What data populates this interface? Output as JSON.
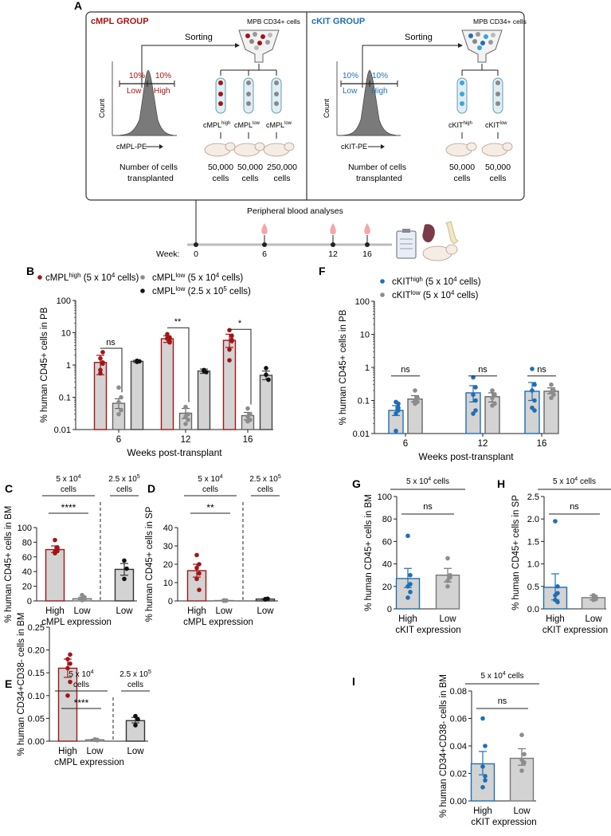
{
  "panel_A": {
    "letter": "A",
    "cmpl_group": {
      "title": "cMPL GROUP",
      "sorting": "Sorting",
      "source": "MPB CD34+ cells",
      "pct_low": "10%",
      "pct_high": "10%",
      "low": "Low",
      "high": "High",
      "xlabel": "cMPL-PE",
      "ylabel": "Count",
      "tubes": [
        {
          "base": "cMPL",
          "sup": "high",
          "cells": "50,000",
          "unit": "cells"
        },
        {
          "base": "cMPL",
          "sup": "low",
          "cells": "50,000",
          "unit": "cells"
        },
        {
          "base": "cMPL",
          "sup": "low",
          "cells": "250,000",
          "unit": "cells"
        }
      ],
      "cells_label_1": "Number of cells",
      "cells_label_2": "transplanted"
    },
    "ckit_group": {
      "title": "cKIT GROUP",
      "sorting": "Sorting",
      "source": "MPB CD34+ cells",
      "pct_low": "10%",
      "pct_high": "10%",
      "low": "Low",
      "high": "High",
      "xlabel": "cKIT-PE",
      "ylabel": "Count",
      "tubes": [
        {
          "base": "cKIT",
          "sup": "high",
          "cells": "50,000",
          "unit": "cells"
        },
        {
          "base": "cKIT",
          "sup": "low",
          "cells": "50,000",
          "unit": "cells"
        }
      ],
      "cells_label_1": "Number of cells",
      "cells_label_2": "transplanted"
    },
    "timeline": {
      "title": "Peripheral blood analyses",
      "week_label": "Week:",
      "weeks": [
        "0",
        "6",
        "12",
        "16"
      ]
    }
  },
  "colors": {
    "red": "#a31515",
    "blue": "#1f6fb5",
    "gray_bar": "#d3d3d3",
    "dot_gray": "#8c8c8c",
    "black": "#111111"
  },
  "chart_data": [
    {
      "id": "B",
      "type": "bar",
      "letter": "B",
      "ylabel": "% human CD45+ cells in PB",
      "xlabel": "Weeks post-transplant",
      "yscale": "log",
      "ylim": [
        0.01,
        100
      ],
      "yticks": [
        "0.01",
        "0.1",
        "1",
        "10",
        "100"
      ],
      "categories": [
        "6",
        "12",
        "16"
      ],
      "legend": [
        {
          "base": "cMPL",
          "sup": "high",
          "rest": " (5 x 10",
          "exp": "4",
          "tail": " cells)"
        },
        {
          "base": "cMPL",
          "sup": "low",
          "rest": " (5 x 10",
          "exp": "4",
          "tail": " cells)"
        },
        {
          "base": "cMPL",
          "sup": "low",
          "rest": " (2.5 x 10",
          "exp": "5",
          "tail": " cells)"
        }
      ],
      "series": [
        {
          "name": "cMPL high (5 x 10^4 cells)",
          "values": [
            1.2,
            6.5,
            5.8
          ]
        },
        {
          "name": "cMPL low (5 x 10^4 cells)",
          "values": [
            0.065,
            0.032,
            0.027
          ]
        },
        {
          "name": "cMPL low (2.5 x 10^5 cells)",
          "values": [
            1.3,
            0.65,
            0.48
          ]
        }
      ],
      "annotations": [
        "ns",
        "**",
        "*"
      ]
    },
    {
      "id": "F",
      "type": "bar",
      "letter": "F",
      "ylabel": "% human CD45+ cells in PB",
      "xlabel": "Weeks post-transplant",
      "yscale": "log",
      "ylim": [
        0.01,
        100
      ],
      "yticks": [
        "0.01",
        "0.1",
        "1",
        "10",
        "100"
      ],
      "categories": [
        "6",
        "12",
        "16"
      ],
      "legend": [
        {
          "base": "cKIT",
          "sup": "high",
          "rest": " (5 x 10",
          "exp": "4",
          "tail": " cells)"
        },
        {
          "base": "cKIT",
          "sup": "low",
          "rest": " (5 x 10",
          "exp": "4",
          "tail": " cells)"
        }
      ],
      "series": [
        {
          "name": "cKIT high (5 x 10^4 cells)",
          "values": [
            0.05,
            0.17,
            0.19
          ]
        },
        {
          "name": "cKIT low (5 x 10^4 cells)",
          "values": [
            0.11,
            0.13,
            0.19
          ]
        }
      ],
      "annotations": [
        "ns",
        "ns",
        "ns"
      ]
    },
    {
      "id": "C",
      "type": "bar",
      "letter": "C",
      "ylabel": "% human CD45+ cells in BM",
      "xlabel": "cMPL expression",
      "ylim": [
        0,
        100
      ],
      "yticks": [
        "0",
        "20",
        "40",
        "60",
        "80",
        "100"
      ],
      "categories": [
        "High",
        "Low",
        "Low"
      ],
      "values": [
        70,
        3,
        43
      ],
      "group_labels": [
        "5 x 10^4 cells",
        "2.5 x 10^5 cells"
      ],
      "annotations": [
        "****"
      ]
    },
    {
      "id": "D",
      "type": "bar",
      "letter": "D",
      "ylabel": "% human CD45+ cells in SP",
      "xlabel": "cMPL expression",
      "ylim": [
        0,
        40
      ],
      "yticks": [
        "0",
        "10",
        "20",
        "30",
        "40"
      ],
      "categories": [
        "High",
        "Low",
        "Low"
      ],
      "values": [
        16.5,
        0.2,
        1.0
      ],
      "group_labels": [
        "5 x 10^4 cells",
        "2.5 x 10^5 cells"
      ],
      "annotations": [
        "**"
      ]
    },
    {
      "id": "E",
      "type": "bar",
      "letter": "E",
      "ylabel": "% human CD34+CD38- cells in BM",
      "xlabel": "cMPL expression",
      "ylim": [
        0,
        0.25
      ],
      "yticks": [
        "0.00",
        "0.05",
        "0.10",
        "0.15",
        "0.20",
        "0.25"
      ],
      "categories": [
        "High",
        "Low",
        "Low"
      ],
      "values": [
        0.16,
        0.003,
        0.045
      ],
      "group_labels": [
        "5 x 10^4 cells",
        "2.5 x 10^5 cells"
      ],
      "annotations": [
        "****"
      ]
    },
    {
      "id": "G",
      "type": "bar",
      "letter": "G",
      "ylabel": "% human CD45+ cells in BM",
      "xlabel": "cKIT expression",
      "ylim": [
        0,
        100
      ],
      "yticks": [
        "0",
        "20",
        "40",
        "60",
        "80",
        "100"
      ],
      "categories": [
        "High",
        "Low"
      ],
      "values": [
        27,
        30
      ],
      "group_labels": [
        "5 x 10^4 cells"
      ],
      "annotations": [
        "ns"
      ]
    },
    {
      "id": "H",
      "type": "bar",
      "letter": "H",
      "ylabel": "% human CD45+ cells in SP",
      "xlabel": "cKIT expression",
      "ylim": [
        0,
        2.5
      ],
      "yticks": [
        "0.0",
        "0.5",
        "1.0",
        "1.5",
        "2.0",
        "2.5"
      ],
      "categories": [
        "High",
        "Low"
      ],
      "values": [
        0.48,
        0.25
      ],
      "group_labels": [
        "5 x 10^4 cells"
      ],
      "annotations": [
        "ns"
      ]
    },
    {
      "id": "I",
      "type": "bar",
      "letter": "I",
      "ylabel": "% human CD34+CD38- cells in BM",
      "xlabel": "cKIT expression",
      "ylim": [
        0,
        0.08
      ],
      "yticks": [
        "0.00",
        "0.02",
        "0.04",
        "0.06",
        "0.08"
      ],
      "categories": [
        "High",
        "Low"
      ],
      "values": [
        0.027,
        0.031
      ],
      "group_labels": [
        "5 x 10^4 cells"
      ],
      "annotations": [
        "ns"
      ]
    }
  ]
}
